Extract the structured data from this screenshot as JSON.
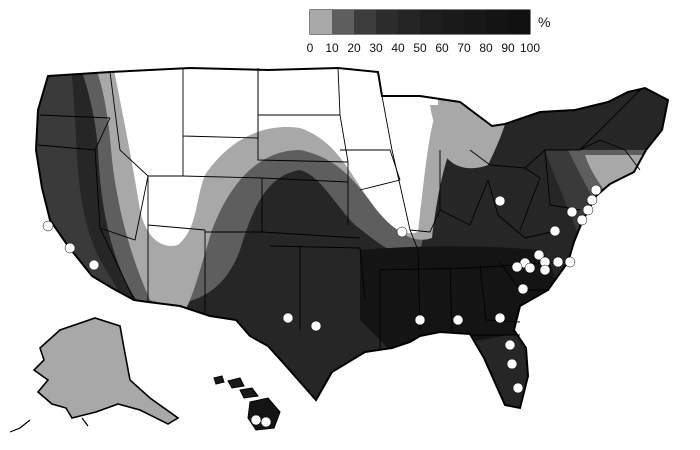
{
  "legend": {
    "unit": "%",
    "ticks": [
      "0",
      "10",
      "20",
      "30",
      "40",
      "50",
      "60",
      "70",
      "80",
      "90",
      "100"
    ],
    "colors": [
      "#a8a8a8",
      "#5e5e5e",
      "#3c3c3c",
      "#2c2c2c",
      "#242424",
      "#1e1e1e",
      "#1a1a1a",
      "#171717",
      "#141414",
      "#111111"
    ]
  },
  "map": {
    "zone_colors": {
      "none": "#ffffff",
      "low": "#a8a8a8",
      "low_mid": "#5e5e5e",
      "mid": "#3a3a3a",
      "high": "#262626",
      "very_high": "#141414",
      "state_line": "#000000",
      "marker": "#ffffff"
    },
    "regions": [
      "contiguous-us",
      "alaska",
      "hawaii"
    ],
    "marker_count": 30
  }
}
